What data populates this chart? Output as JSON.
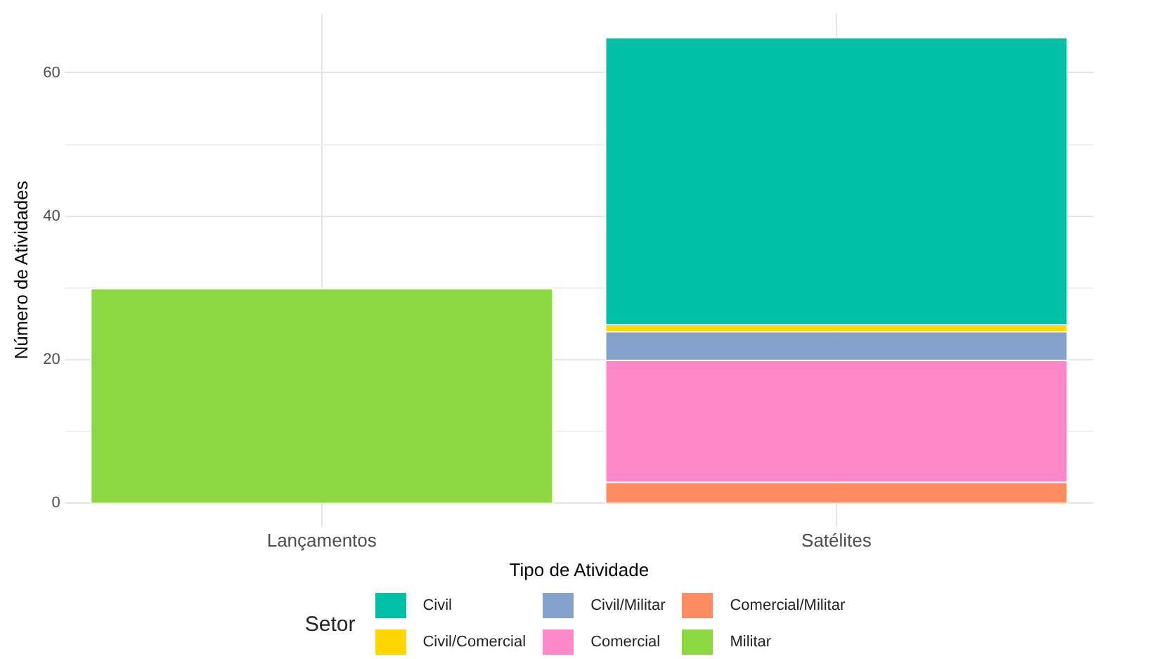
{
  "chart_data": {
    "type": "bar",
    "xlabel": "Tipo de Atividade",
    "ylabel": "Número de Atividades",
    "legend_title": "Setor",
    "categories": [
      "Lançamentos",
      "Satélites"
    ],
    "stacked": true,
    "ylim": [
      -3.25,
      68.25
    ],
    "yticks": [
      0,
      {
        "value": 10,
        "label": null
      },
      20,
      {
        "value": 30,
        "label": null
      },
      40,
      {
        "value": 50,
        "label": null
      },
      60
    ],
    "grid": true,
    "legend": "bottom",
    "series": [
      {
        "name": "Militar",
        "color": "#8cd742",
        "values": [
          30,
          null
        ]
      },
      {
        "name": "Comercial/Militar",
        "color": "#fc8d62",
        "values": [
          null,
          3
        ]
      },
      {
        "name": "Comercial",
        "color": "#ff88c8",
        "values": [
          null,
          17
        ]
      },
      {
        "name": "Civil/Militar",
        "color": "#84a2cb",
        "values": [
          null,
          4
        ]
      },
      {
        "name": "Civil/Comercial",
        "color": "#ffd700",
        "values": [
          null,
          1
        ]
      },
      {
        "name": "Civil",
        "color": "#00bfa5",
        "values": [
          null,
          40
        ]
      }
    ]
  }
}
